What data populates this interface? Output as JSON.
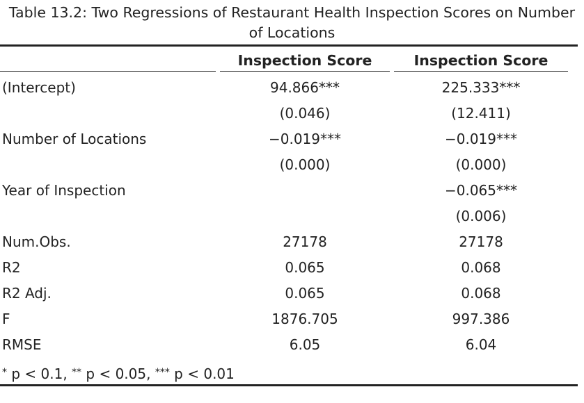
{
  "caption": {
    "line1": "Table 13.2: Two Regressions of Restaurant Health Inspection Scores on Number",
    "line2": "of Locations"
  },
  "columns": [
    "",
    "Inspection Score",
    "Inspection Score"
  ],
  "rows": [
    {
      "label": "(Intercept)",
      "v1": "94.866***",
      "v2": "225.333***"
    },
    {
      "label": "",
      "v1": "(0.046)",
      "v2": "(12.411)"
    },
    {
      "label": "Number of Locations",
      "v1": "−0.019***",
      "v2": "−0.019***"
    },
    {
      "label": "",
      "v1": "(0.000)",
      "v2": "(0.000)"
    },
    {
      "label": "Year of Inspection",
      "v1": "",
      "v2": "−0.065***"
    },
    {
      "label": "",
      "v1": "",
      "v2": "(0.006)"
    },
    {
      "label": "Num.Obs.",
      "v1": "27178",
      "v2": "27178"
    },
    {
      "label": "R2",
      "v1": "0.065",
      "v2": "0.068"
    },
    {
      "label": "R2 Adj.",
      "v1": "0.065",
      "v2": "0.068"
    },
    {
      "label": "F",
      "v1": "1876.705",
      "v2": "997.386"
    },
    {
      "label": "RMSE",
      "v1": "6.05",
      "v2": "6.04"
    }
  ],
  "footnote": {
    "s1": "*",
    "t1": " p < 0.1, ",
    "s2": "**",
    "t2": " p < 0.05, ",
    "s3": "***",
    "t3": " p < 0.01"
  }
}
